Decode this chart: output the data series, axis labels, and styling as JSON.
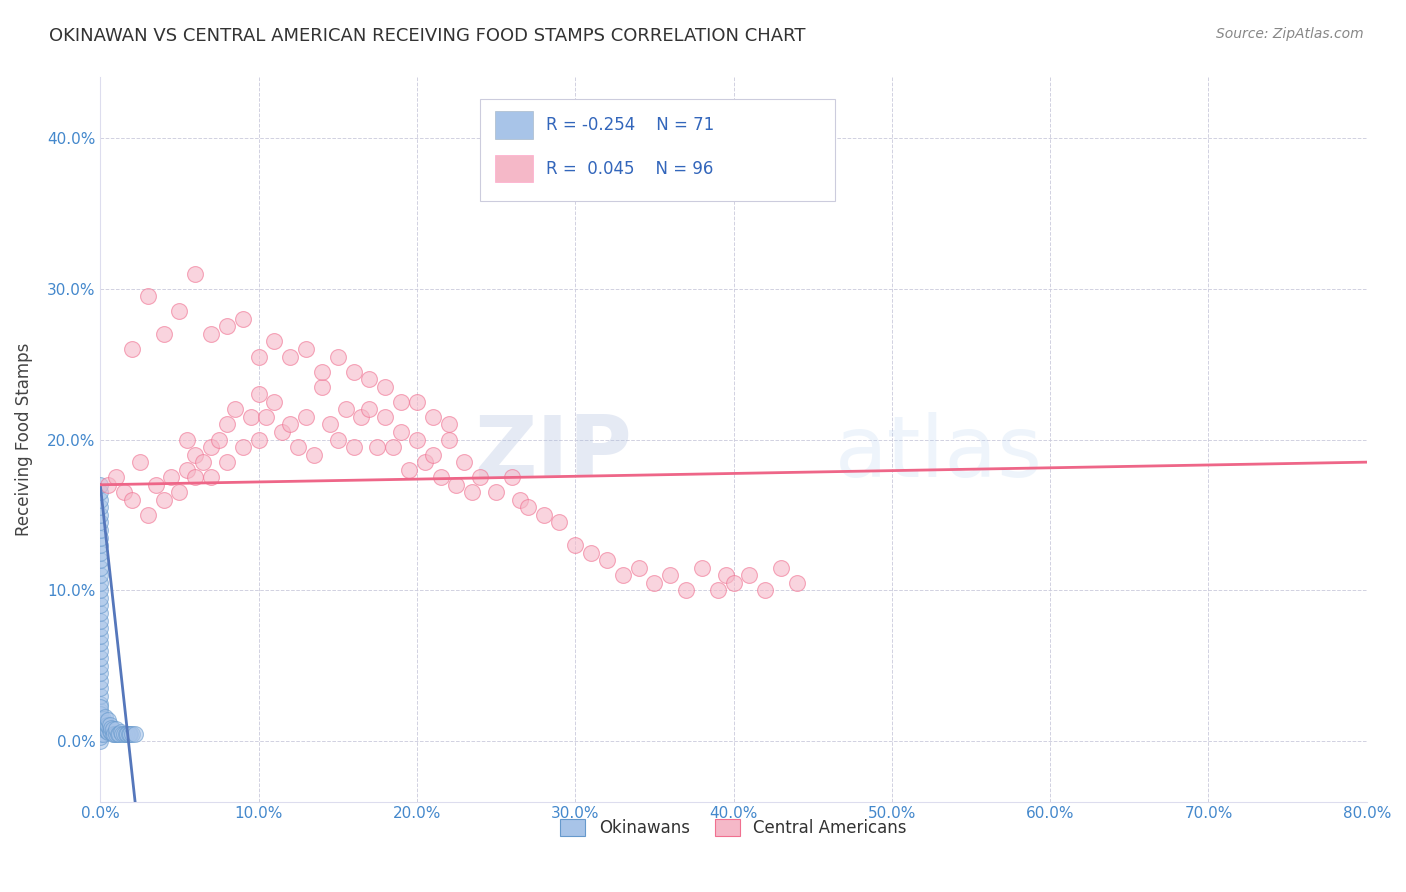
{
  "title": "OKINAWAN VS CENTRAL AMERICAN RECEIVING FOOD STAMPS CORRELATION CHART",
  "source": "Source: ZipAtlas.com",
  "ylabel": "Receiving Food Stamps",
  "legend_label1": "Okinawans",
  "legend_label2": "Central Americans",
  "R1": -0.254,
  "N1": 71,
  "R2": 0.045,
  "N2": 96,
  "color_okinawan_fill": "#A8C4E8",
  "color_okinawan_edge": "#6699CC",
  "color_central_fill": "#F5B8C8",
  "color_central_edge": "#F07090",
  "color_line1": "#5577BB",
  "color_line2": "#EE6688",
  "watermark_zip": "ZIP",
  "watermark_atlas": "atlas",
  "xlim": [
    0.0,
    0.8
  ],
  "ylim": [
    -0.04,
    0.44
  ],
  "xticks": [
    0.0,
    0.1,
    0.2,
    0.3,
    0.4,
    0.5,
    0.6,
    0.7,
    0.8
  ],
  "yticks": [
    0.0,
    0.1,
    0.2,
    0.3,
    0.4
  ],
  "xtick_labels": [
    "0.0%",
    "10.0%",
    "20.0%",
    "30.0%",
    "40.0%",
    "50.0%",
    "60.0%",
    "70.0%",
    "80.0%"
  ],
  "ytick_labels": [
    "0.0%",
    "10.0%",
    "20.0%",
    "30.0%",
    "40.0%"
  ],
  "background_color": "#FFFFFF",
  "grid_color": "#CCCCDD",
  "okinawan_x": [
    0.0,
    0.0,
    0.0,
    0.0,
    0.0,
    0.0,
    0.0,
    0.0,
    0.0,
    0.0,
    0.0,
    0.0,
    0.0,
    0.0,
    0.0,
    0.0,
    0.0,
    0.0,
    0.0,
    0.0,
    0.0,
    0.0,
    0.0,
    0.0,
    0.0,
    0.0,
    0.0,
    0.0,
    0.0,
    0.0,
    0.0,
    0.0,
    0.0,
    0.0,
    0.0,
    0.0,
    0.0,
    0.0,
    0.0,
    0.0,
    0.002,
    0.002,
    0.002,
    0.003,
    0.003,
    0.003,
    0.004,
    0.004,
    0.005,
    0.005,
    0.005,
    0.006,
    0.006,
    0.007,
    0.007,
    0.008,
    0.008,
    0.009,
    0.01,
    0.01,
    0.011,
    0.012,
    0.013,
    0.014,
    0.015,
    0.016,
    0.017,
    0.018,
    0.019,
    0.02,
    0.022
  ],
  "okinawan_y": [
    0.0,
    0.005,
    0.01,
    0.015,
    0.02,
    0.025,
    0.03,
    0.035,
    0.04,
    0.045,
    0.05,
    0.055,
    0.06,
    0.065,
    0.07,
    0.075,
    0.08,
    0.085,
    0.09,
    0.095,
    0.1,
    0.105,
    0.11,
    0.115,
    0.12,
    0.125,
    0.13,
    0.135,
    0.14,
    0.145,
    0.15,
    0.155,
    0.16,
    0.165,
    0.17,
    0.003,
    0.008,
    0.013,
    0.018,
    0.023,
    0.005,
    0.01,
    0.015,
    0.008,
    0.012,
    0.016,
    0.007,
    0.011,
    0.006,
    0.01,
    0.014,
    0.007,
    0.011,
    0.006,
    0.009,
    0.005,
    0.008,
    0.005,
    0.005,
    0.008,
    0.005,
    0.005,
    0.006,
    0.005,
    0.005,
    0.005,
    0.005,
    0.005,
    0.005,
    0.005,
    0.005
  ],
  "central_x": [
    0.005,
    0.01,
    0.015,
    0.02,
    0.025,
    0.03,
    0.035,
    0.04,
    0.045,
    0.05,
    0.055,
    0.055,
    0.06,
    0.06,
    0.065,
    0.07,
    0.07,
    0.075,
    0.08,
    0.08,
    0.085,
    0.09,
    0.095,
    0.1,
    0.1,
    0.105,
    0.11,
    0.115,
    0.12,
    0.125,
    0.13,
    0.135,
    0.14,
    0.145,
    0.15,
    0.155,
    0.16,
    0.165,
    0.17,
    0.175,
    0.18,
    0.185,
    0.19,
    0.195,
    0.2,
    0.205,
    0.21,
    0.215,
    0.22,
    0.225,
    0.23,
    0.235,
    0.24,
    0.25,
    0.26,
    0.265,
    0.27,
    0.28,
    0.29,
    0.3,
    0.31,
    0.32,
    0.33,
    0.34,
    0.35,
    0.36,
    0.37,
    0.38,
    0.39,
    0.395,
    0.4,
    0.41,
    0.42,
    0.43,
    0.44,
    0.02,
    0.03,
    0.04,
    0.05,
    0.06,
    0.07,
    0.08,
    0.09,
    0.1,
    0.11,
    0.12,
    0.13,
    0.14,
    0.15,
    0.16,
    0.17,
    0.18,
    0.19,
    0.2,
    0.21,
    0.22
  ],
  "central_y": [
    0.17,
    0.175,
    0.165,
    0.16,
    0.185,
    0.15,
    0.17,
    0.16,
    0.175,
    0.165,
    0.2,
    0.18,
    0.19,
    0.175,
    0.185,
    0.195,
    0.175,
    0.2,
    0.21,
    0.185,
    0.22,
    0.195,
    0.215,
    0.23,
    0.2,
    0.215,
    0.225,
    0.205,
    0.21,
    0.195,
    0.215,
    0.19,
    0.235,
    0.21,
    0.2,
    0.22,
    0.195,
    0.215,
    0.22,
    0.195,
    0.215,
    0.195,
    0.205,
    0.18,
    0.2,
    0.185,
    0.19,
    0.175,
    0.2,
    0.17,
    0.185,
    0.165,
    0.175,
    0.165,
    0.175,
    0.16,
    0.155,
    0.15,
    0.145,
    0.13,
    0.125,
    0.12,
    0.11,
    0.115,
    0.105,
    0.11,
    0.1,
    0.115,
    0.1,
    0.11,
    0.105,
    0.11,
    0.1,
    0.115,
    0.105,
    0.26,
    0.295,
    0.27,
    0.285,
    0.31,
    0.27,
    0.275,
    0.28,
    0.255,
    0.265,
    0.255,
    0.26,
    0.245,
    0.255,
    0.245,
    0.24,
    0.235,
    0.225,
    0.225,
    0.215,
    0.21
  ],
  "trend_line1_x0": 0.0,
  "trend_line1_y0": 0.17,
  "trend_line1_x1": 0.022,
  "trend_line1_y1": -0.04,
  "trend_line2_x0": 0.0,
  "trend_line2_y0": 0.17,
  "trend_line2_x1": 0.8,
  "trend_line2_y1": 0.185
}
